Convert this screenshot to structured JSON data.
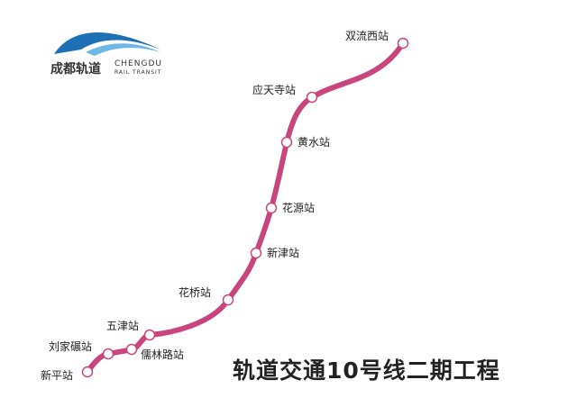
{
  "logo": {
    "cn": "成都轨道",
    "en_line1": "CHENGDU",
    "en_line2": "RAIL TRANSIT"
  },
  "title": "轨道交通10号线二期工程",
  "line_color": "#c8457d",
  "stations": [
    {
      "name": "双流西站"
    },
    {
      "name": "应天寺站"
    },
    {
      "name": "黄水站"
    },
    {
      "name": "花源站"
    },
    {
      "name": "新津站"
    },
    {
      "name": "花桥站"
    },
    {
      "name": "五津站"
    },
    {
      "name": "儒林路站"
    },
    {
      "name": "刘家碾站"
    },
    {
      "name": "新平站"
    }
  ]
}
